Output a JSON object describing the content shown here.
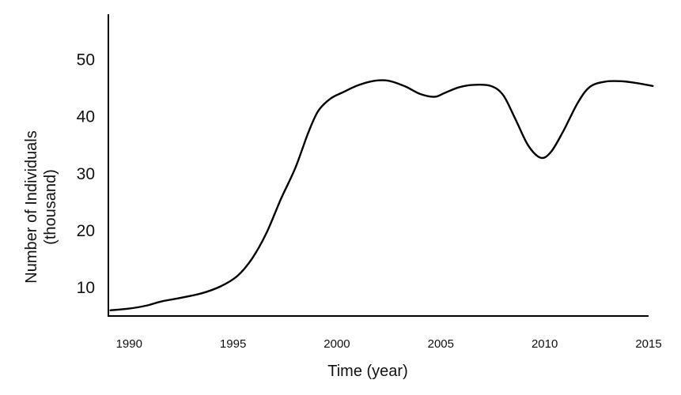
{
  "chart_data": {
    "type": "line",
    "title": "",
    "xlabel": "Time (year)",
    "ylabel_line1": "Number of Individuals",
    "ylabel_line2": "(thousand)",
    "xlim": [
      1989,
      2015
    ],
    "ylim": [
      5,
      58
    ],
    "x_ticks": [
      1990,
      1995,
      2000,
      2005,
      2010,
      2015
    ],
    "y_ticks": [
      10,
      20,
      30,
      40,
      50
    ],
    "grid": false,
    "legend": "none",
    "series": [
      {
        "color": "#000000",
        "points": [
          [
            1989.1,
            6.0
          ],
          [
            1990.0,
            6.3
          ],
          [
            1990.8,
            6.8
          ],
          [
            1991.6,
            7.6
          ],
          [
            1992.5,
            8.2
          ],
          [
            1993.5,
            9.0
          ],
          [
            1994.4,
            10.2
          ],
          [
            1995.2,
            12.0
          ],
          [
            1995.9,
            15.0
          ],
          [
            1996.6,
            19.5
          ],
          [
            1997.3,
            25.5
          ],
          [
            1998.0,
            31.0
          ],
          [
            1998.6,
            37.0
          ],
          [
            1999.1,
            41.0
          ],
          [
            1999.7,
            43.2
          ],
          [
            2000.3,
            44.3
          ],
          [
            2001.0,
            45.5
          ],
          [
            2001.8,
            46.3
          ],
          [
            2002.5,
            46.3
          ],
          [
            2003.3,
            45.3
          ],
          [
            2004.0,
            44.0
          ],
          [
            2004.7,
            43.5
          ],
          [
            2005.2,
            44.2
          ],
          [
            2005.9,
            45.2
          ],
          [
            2006.6,
            45.6
          ],
          [
            2007.4,
            45.4
          ],
          [
            2008.0,
            43.8
          ],
          [
            2008.6,
            39.5
          ],
          [
            2009.2,
            35.0
          ],
          [
            2009.8,
            32.8
          ],
          [
            2010.3,
            33.8
          ],
          [
            2010.9,
            37.5
          ],
          [
            2011.6,
            42.5
          ],
          [
            2012.2,
            45.3
          ],
          [
            2013.0,
            46.2
          ],
          [
            2013.8,
            46.2
          ],
          [
            2014.6,
            45.8
          ],
          [
            2015.2,
            45.4
          ]
        ]
      }
    ]
  }
}
